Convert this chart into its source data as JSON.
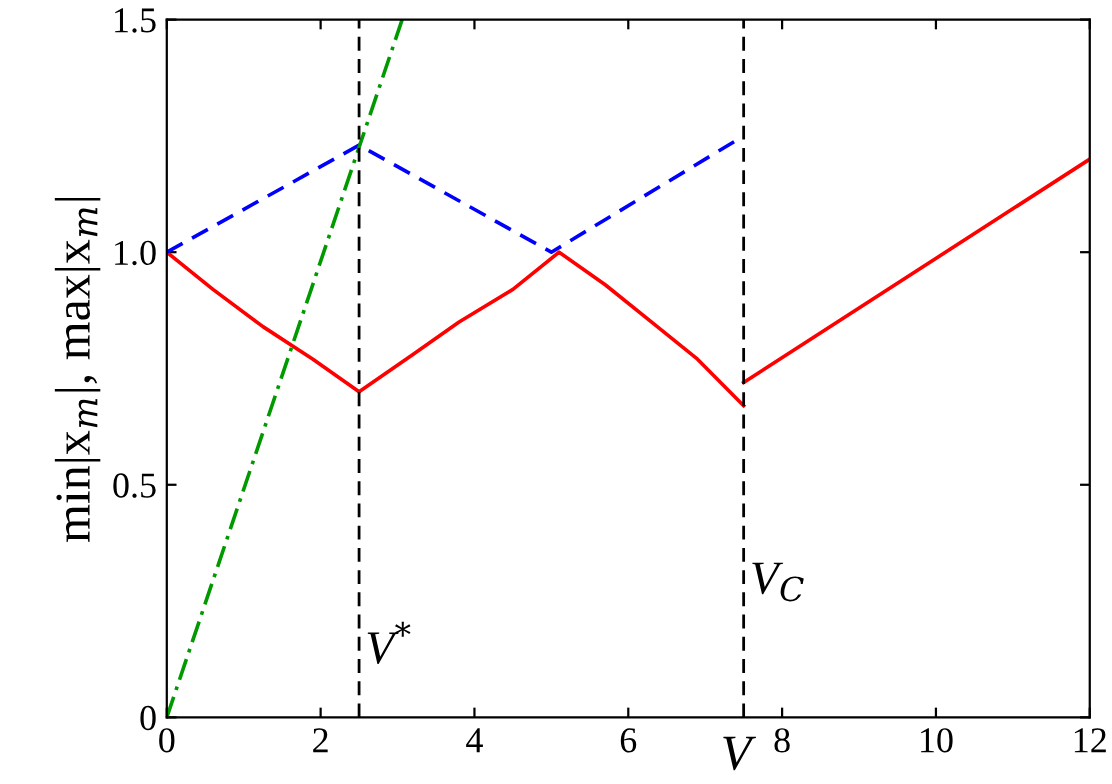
{
  "chart_data": {
    "type": "line",
    "xlabel": "V",
    "ylabel": "min|x$_{m}$|, max|x$_{m}$|",
    "xlim": [
      0,
      12
    ],
    "ylim": [
      0,
      1.5
    ],
    "xticks": [
      0,
      2,
      4,
      6,
      8,
      10,
      12
    ],
    "yticks": [
      0,
      {
        "value": 0.5,
        "label": "0.5"
      },
      {
        "value": 1.0,
        "label": "1.0"
      },
      {
        "value": 1.5,
        "label": "1.5"
      }
    ],
    "grid": false,
    "legend": false,
    "series": [
      {
        "color": "#ff0000",
        "line_style": "solid",
        "x": [
          0,
          0.6,
          1.25,
          1.9,
          2.5,
          3.2,
          3.8,
          4.5,
          5.1,
          5.7,
          6.3,
          6.9,
          7.5
        ],
        "values": [
          1.0,
          0.92,
          0.84,
          0.77,
          0.7,
          0.78,
          0.85,
          0.92,
          1.0,
          0.93,
          0.85,
          0.77,
          0.67
        ]
      },
      {
        "color": "#ff0000",
        "line_style": "solid",
        "x": [
          7.5,
          12
        ],
        "values": [
          0.72,
          1.2
        ]
      },
      {
        "color": "#0000ff",
        "line_style": "dashed",
        "x": [
          0,
          2.5,
          5.0,
          7.4
        ],
        "values": [
          1.0,
          1.23,
          1.0,
          1.24
        ]
      },
      {
        "color": "#009900",
        "line_style": "dashdot",
        "x": [
          0,
          3.06
        ],
        "values": [
          0,
          1.5
        ]
      }
    ],
    "ref_lines": [
      {
        "axis": "x",
        "value": 2.5,
        "label": "V$^{*}$",
        "color": "#000000",
        "line_style": "dashed"
      },
      {
        "axis": "x",
        "value": 7.5,
        "label": "V$_{C}$",
        "color": "#000000",
        "line_style": "dashed"
      }
    ]
  }
}
